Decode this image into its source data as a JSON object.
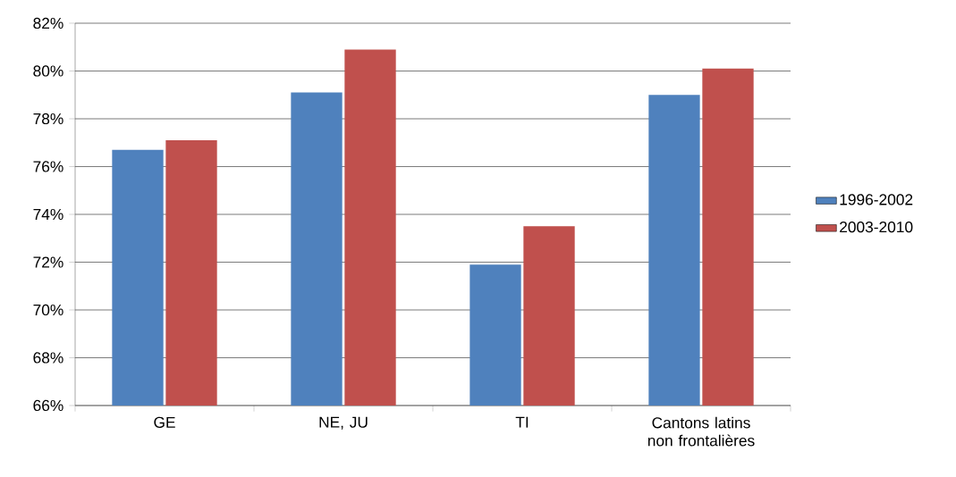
{
  "chart_data": {
    "type": "bar",
    "categories": [
      "GE",
      "NE, JU",
      "TI",
      "Cantons latins non frontalières"
    ],
    "series": [
      {
        "name": "1996-2002",
        "color": "#4f81bd",
        "values": [
          76.7,
          79.1,
          71.9,
          79.0
        ]
      },
      {
        "name": "2003-2010",
        "color": "#c0504d",
        "values": [
          77.1,
          80.9,
          73.5,
          80.1
        ]
      }
    ],
    "ylim": [
      66,
      82
    ],
    "yticks": [
      {
        "value": 66,
        "label": "66%"
      },
      {
        "value": 68,
        "label": "68%"
      },
      {
        "value": 70,
        "label": "70%"
      },
      {
        "value": 72,
        "label": "72%"
      },
      {
        "value": 74,
        "label": "74%"
      },
      {
        "value": 76,
        "label": "76%"
      },
      {
        "value": 78,
        "label": "78%"
      },
      {
        "value": 80,
        "label": "80%"
      },
      {
        "value": 82,
        "label": "82%"
      }
    ],
    "grid": "y",
    "legend": "right"
  }
}
